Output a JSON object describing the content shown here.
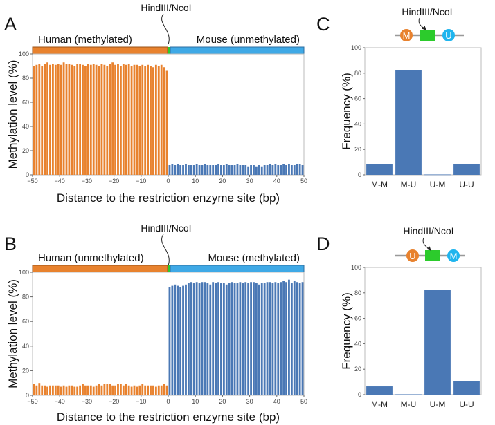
{
  "colors": {
    "orange": "#E8822E",
    "orange_dark": "#9A5318",
    "blue_bar": "#4A78B5",
    "blue_strip": "#3FA9E6",
    "blue_strip_dark": "#2E6EA0",
    "green": "#2CCB2C",
    "circle_blue": "#1FB5EE",
    "axis_text": "#444444"
  },
  "panels": {
    "A": {
      "letter": "A",
      "site_label": "HindIII/NcoI",
      "left_strip_label": "Human (methylated)",
      "right_strip_label": "Mouse (unmethylated)"
    },
    "B": {
      "letter": "B",
      "site_label": "HindIII/NcoI",
      "left_strip_label": "Human (unmethylated)",
      "right_strip_label": "Mouse (methylated)"
    },
    "C": {
      "letter": "C",
      "site_label": "HindIII/NcoI",
      "left_circle": "M",
      "right_circle": "U"
    },
    "D": {
      "letter": "D",
      "site_label": "HindIII/NcoI",
      "left_circle": "U",
      "right_circle": "M"
    }
  },
  "chart_data": [
    {
      "panel": "A",
      "type": "bar",
      "xlabel": "Distance to the restriction enzyme site (bp)",
      "ylabel": "Methylation level (%)",
      "xlim": [
        -50,
        50
      ],
      "ylim": [
        0,
        100
      ],
      "xticks": [
        -50,
        -40,
        -30,
        -20,
        -10,
        0,
        10,
        20,
        30,
        40,
        50
      ],
      "yticks": [
        0,
        20,
        40,
        60,
        80,
        100
      ],
      "series": [
        {
          "x": [
            -50,
            -49,
            -48,
            -47,
            -46,
            -45,
            -44,
            -43,
            -42,
            -41,
            -40,
            -39,
            -38,
            -37,
            -36,
            -35,
            -34,
            -33,
            -32,
            -31,
            -30,
            -29,
            -28,
            -27,
            -26,
            -25,
            -24,
            -23,
            -22,
            -21,
            -20,
            -19,
            -18,
            -17,
            -16,
            -15,
            -14,
            -13,
            -12,
            -11,
            -10,
            -9,
            -8,
            -7,
            -6,
            -5,
            -4,
            -3,
            -2,
            -1
          ],
          "values": [
            90,
            91,
            92,
            90,
            92,
            93,
            91,
            92,
            91,
            92,
            91,
            93,
            92,
            92,
            91,
            90,
            92,
            92,
            91,
            90,
            92,
            91,
            92,
            91,
            90,
            92,
            91,
            90,
            92,
            93,
            91,
            92,
            90,
            92,
            91,
            92,
            90,
            91,
            91,
            90,
            91,
            90,
            91,
            90,
            89,
            91,
            90,
            91,
            89,
            86
          ],
          "color": "orange"
        },
        {
          "x": [
            1,
            2,
            3,
            4,
            5,
            6,
            7,
            8,
            9,
            10,
            11,
            12,
            13,
            14,
            15,
            16,
            17,
            18,
            19,
            20,
            21,
            22,
            23,
            24,
            25,
            26,
            27,
            28,
            29,
            30,
            31,
            32,
            33,
            34,
            35,
            36,
            37,
            38,
            39,
            40,
            41,
            42,
            43,
            44,
            45,
            46,
            47,
            48,
            49,
            50
          ],
          "values": [
            8,
            9,
            8,
            9,
            8,
            8,
            9,
            8,
            8,
            8,
            9,
            8,
            8,
            9,
            8,
            8,
            8,
            8,
            9,
            8,
            8,
            9,
            8,
            8,
            8,
            9,
            8,
            8,
            8,
            7,
            8,
            8,
            7,
            8,
            7,
            8,
            8,
            9,
            8,
            9,
            8,
            8,
            9,
            8,
            9,
            8,
            8,
            9,
            9,
            8
          ],
          "color": "blue_bar"
        }
      ]
    },
    {
      "panel": "B",
      "type": "bar",
      "xlabel": "Distance to the restriction enzyme site (bp)",
      "ylabel": "Methylation level (%)",
      "xlim": [
        -50,
        50
      ],
      "ylim": [
        0,
        100
      ],
      "xticks": [
        -50,
        -40,
        -30,
        -20,
        -10,
        0,
        10,
        20,
        30,
        40,
        50
      ],
      "yticks": [
        0,
        20,
        40,
        60,
        80,
        100
      ],
      "series": [
        {
          "x": [
            -50,
            -49,
            -48,
            -47,
            -46,
            -45,
            -44,
            -43,
            -42,
            -41,
            -40,
            -39,
            -38,
            -37,
            -36,
            -35,
            -34,
            -33,
            -32,
            -31,
            -30,
            -29,
            -28,
            -27,
            -26,
            -25,
            -24,
            -23,
            -22,
            -21,
            -20,
            -19,
            -18,
            -17,
            -16,
            -15,
            -14,
            -13,
            -12,
            -11,
            -10,
            -9,
            -8,
            -7,
            -6,
            -5,
            -4,
            -3,
            -2,
            -1
          ],
          "values": [
            9,
            8,
            10,
            8,
            8,
            7,
            8,
            8,
            8,
            8,
            7,
            8,
            7,
            8,
            8,
            7,
            7,
            8,
            9,
            8,
            8,
            8,
            7,
            8,
            9,
            8,
            9,
            9,
            9,
            8,
            8,
            9,
            9,
            8,
            9,
            8,
            7,
            8,
            7,
            8,
            9,
            8,
            8,
            8,
            8,
            7,
            8,
            8,
            9,
            8
          ],
          "color": "orange"
        },
        {
          "x": [
            1,
            2,
            3,
            4,
            5,
            6,
            7,
            8,
            9,
            10,
            11,
            12,
            13,
            14,
            15,
            16,
            17,
            18,
            19,
            20,
            21,
            22,
            23,
            24,
            25,
            26,
            27,
            28,
            29,
            30,
            31,
            32,
            33,
            34,
            35,
            36,
            37,
            38,
            39,
            40,
            41,
            42,
            43,
            44,
            45,
            46,
            47,
            48,
            49,
            50
          ],
          "values": [
            88,
            89,
            90,
            89,
            88,
            89,
            90,
            91,
            92,
            91,
            92,
            91,
            92,
            92,
            91,
            90,
            92,
            91,
            92,
            91,
            91,
            90,
            91,
            92,
            91,
            91,
            92,
            91,
            92,
            91,
            92,
            92,
            91,
            90,
            91,
            91,
            92,
            92,
            91,
            92,
            91,
            92,
            93,
            92,
            94,
            91,
            93,
            92,
            91,
            92
          ],
          "color": "blue_bar"
        }
      ]
    },
    {
      "panel": "C",
      "type": "bar",
      "xlabel": "",
      "ylabel": "Frequency (%)",
      "ylim": [
        0,
        100
      ],
      "yticks": [
        0,
        20,
        40,
        60,
        80,
        100
      ],
      "categories": [
        "M-M",
        "M-U",
        "U-M",
        "U-U"
      ],
      "values": [
        8.5,
        82.5,
        0.3,
        8.7
      ]
    },
    {
      "panel": "D",
      "type": "bar",
      "xlabel": "",
      "ylabel": "Frequency (%)",
      "ylim": [
        0,
        100
      ],
      "yticks": [
        0,
        20,
        40,
        60,
        80,
        100
      ],
      "categories": [
        "M-M",
        "M-U",
        "U-M",
        "U-U"
      ],
      "values": [
        6.5,
        0.3,
        82.2,
        10.5
      ]
    }
  ]
}
